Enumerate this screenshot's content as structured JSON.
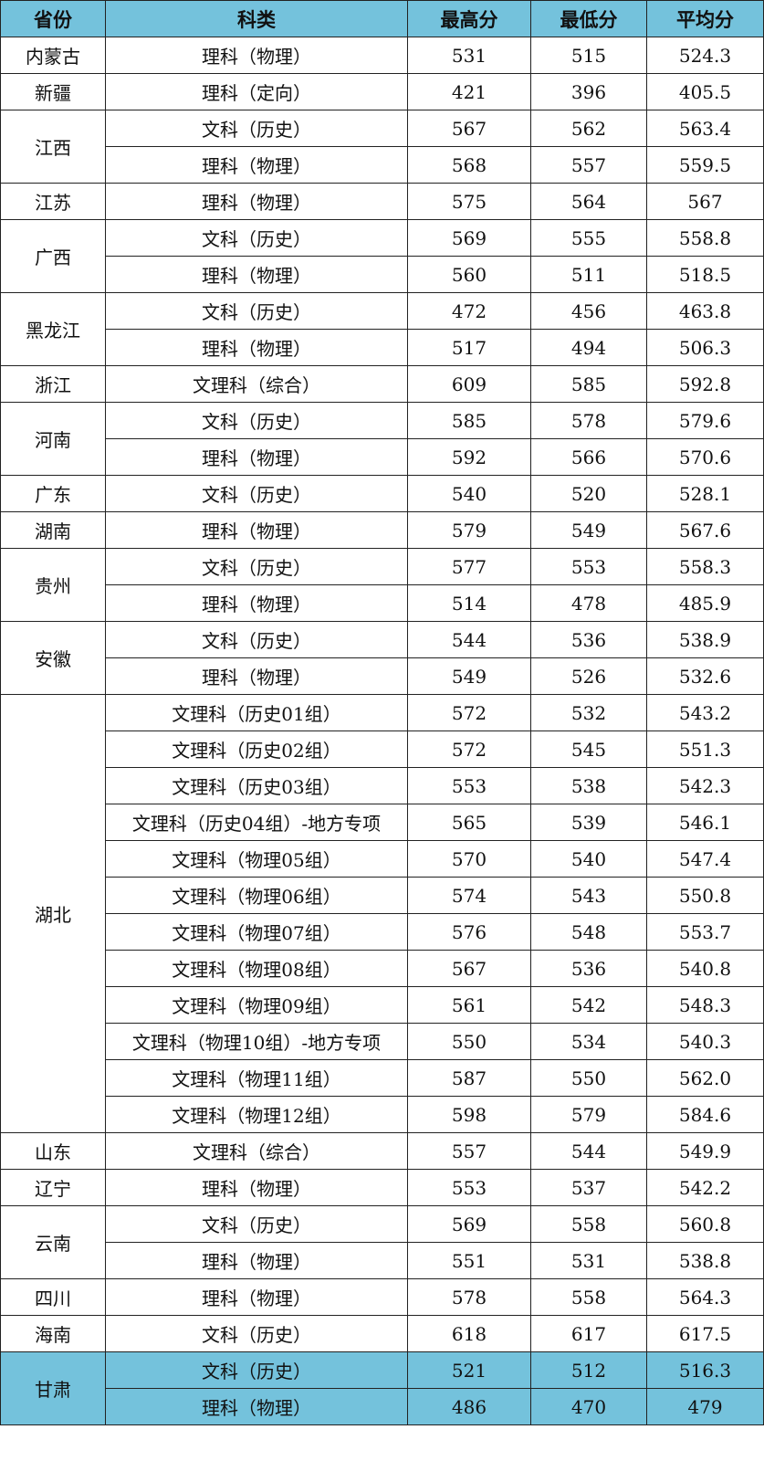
{
  "colors": {
    "header_bg": "#74c2dc",
    "highlight_bg": "#74c2dc"
  },
  "headers": [
    "省份",
    "科类",
    "最高分",
    "最低分",
    "平均分"
  ],
  "groups": [
    {
      "province": "内蒙古",
      "rows": [
        [
          "理科（物理）",
          "531",
          "515",
          "524.3"
        ]
      ]
    },
    {
      "province": "新疆",
      "rows": [
        [
          "理科（定向）",
          "421",
          "396",
          "405.5"
        ]
      ]
    },
    {
      "province": "江西",
      "rows": [
        [
          "文科（历史）",
          "567",
          "562",
          "563.4"
        ],
        [
          "理科（物理）",
          "568",
          "557",
          "559.5"
        ]
      ]
    },
    {
      "province": "江苏",
      "rows": [
        [
          "理科（物理）",
          "575",
          "564",
          "567"
        ]
      ]
    },
    {
      "province": "广西",
      "rows": [
        [
          "文科（历史）",
          "569",
          "555",
          "558.8"
        ],
        [
          "理科（物理）",
          "560",
          "511",
          "518.5"
        ]
      ]
    },
    {
      "province": "黑龙江",
      "rows": [
        [
          "文科（历史）",
          "472",
          "456",
          "463.8"
        ],
        [
          "理科（物理）",
          "517",
          "494",
          "506.3"
        ]
      ]
    },
    {
      "province": "浙江",
      "rows": [
        [
          "文理科（综合）",
          "609",
          "585",
          "592.8"
        ]
      ]
    },
    {
      "province": "河南",
      "rows": [
        [
          "文科（历史）",
          "585",
          "578",
          "579.6"
        ],
        [
          "理科（物理）",
          "592",
          "566",
          "570.6"
        ]
      ]
    },
    {
      "province": "广东",
      "rows": [
        [
          "文科（历史）",
          "540",
          "520",
          "528.1"
        ]
      ]
    },
    {
      "province": "湖南",
      "rows": [
        [
          "理科（物理）",
          "579",
          "549",
          "567.6"
        ]
      ]
    },
    {
      "province": "贵州",
      "rows": [
        [
          "文科（历史）",
          "577",
          "553",
          "558.3"
        ],
        [
          "理科（物理）",
          "514",
          "478",
          "485.9"
        ]
      ]
    },
    {
      "province": "安徽",
      "rows": [
        [
          "文科（历史）",
          "544",
          "536",
          "538.9"
        ],
        [
          "理科（物理）",
          "549",
          "526",
          "532.6"
        ]
      ]
    },
    {
      "province": "湖北",
      "rows": [
        [
          "文理科（历史01组）",
          "572",
          "532",
          "543.2"
        ],
        [
          "文理科（历史02组）",
          "572",
          "545",
          "551.3"
        ],
        [
          "文理科（历史03组）",
          "553",
          "538",
          "542.3"
        ],
        [
          "文理科（历史04组）-地方专项",
          "565",
          "539",
          "546.1"
        ],
        [
          "文理科（物理05组）",
          "570",
          "540",
          "547.4"
        ],
        [
          "文理科（物理06组）",
          "574",
          "543",
          "550.8"
        ],
        [
          "文理科（物理07组）",
          "576",
          "548",
          "553.7"
        ],
        [
          "文理科（物理08组）",
          "567",
          "536",
          "540.8"
        ],
        [
          "文理科（物理09组）",
          "561",
          "542",
          "548.3"
        ],
        [
          "文理科（物理10组）-地方专项",
          "550",
          "534",
          "540.3"
        ],
        [
          "文理科（物理11组）",
          "587",
          "550",
          "562.0"
        ],
        [
          "文理科（物理12组）",
          "598",
          "579",
          "584.6"
        ]
      ]
    },
    {
      "province": "山东",
      "rows": [
        [
          "文理科（综合）",
          "557",
          "544",
          "549.9"
        ]
      ]
    },
    {
      "province": "辽宁",
      "rows": [
        [
          "理科（物理）",
          "553",
          "537",
          "542.2"
        ]
      ]
    },
    {
      "province": "云南",
      "rows": [
        [
          "文科（历史）",
          "569",
          "558",
          "560.8"
        ],
        [
          "理科（物理）",
          "551",
          "531",
          "538.8"
        ]
      ]
    },
    {
      "province": "四川",
      "rows": [
        [
          "理科（物理）",
          "578",
          "558",
          "564.3"
        ]
      ]
    },
    {
      "province": "海南",
      "rows": [
        [
          "文科（历史）",
          "618",
          "617",
          "617.5"
        ]
      ]
    },
    {
      "province": "甘肃",
      "highlight": true,
      "rows": [
        [
          "文科（历史）",
          "521",
          "512",
          "516.3"
        ],
        [
          "理科（物理）",
          "486",
          "470",
          "479"
        ]
      ]
    }
  ]
}
